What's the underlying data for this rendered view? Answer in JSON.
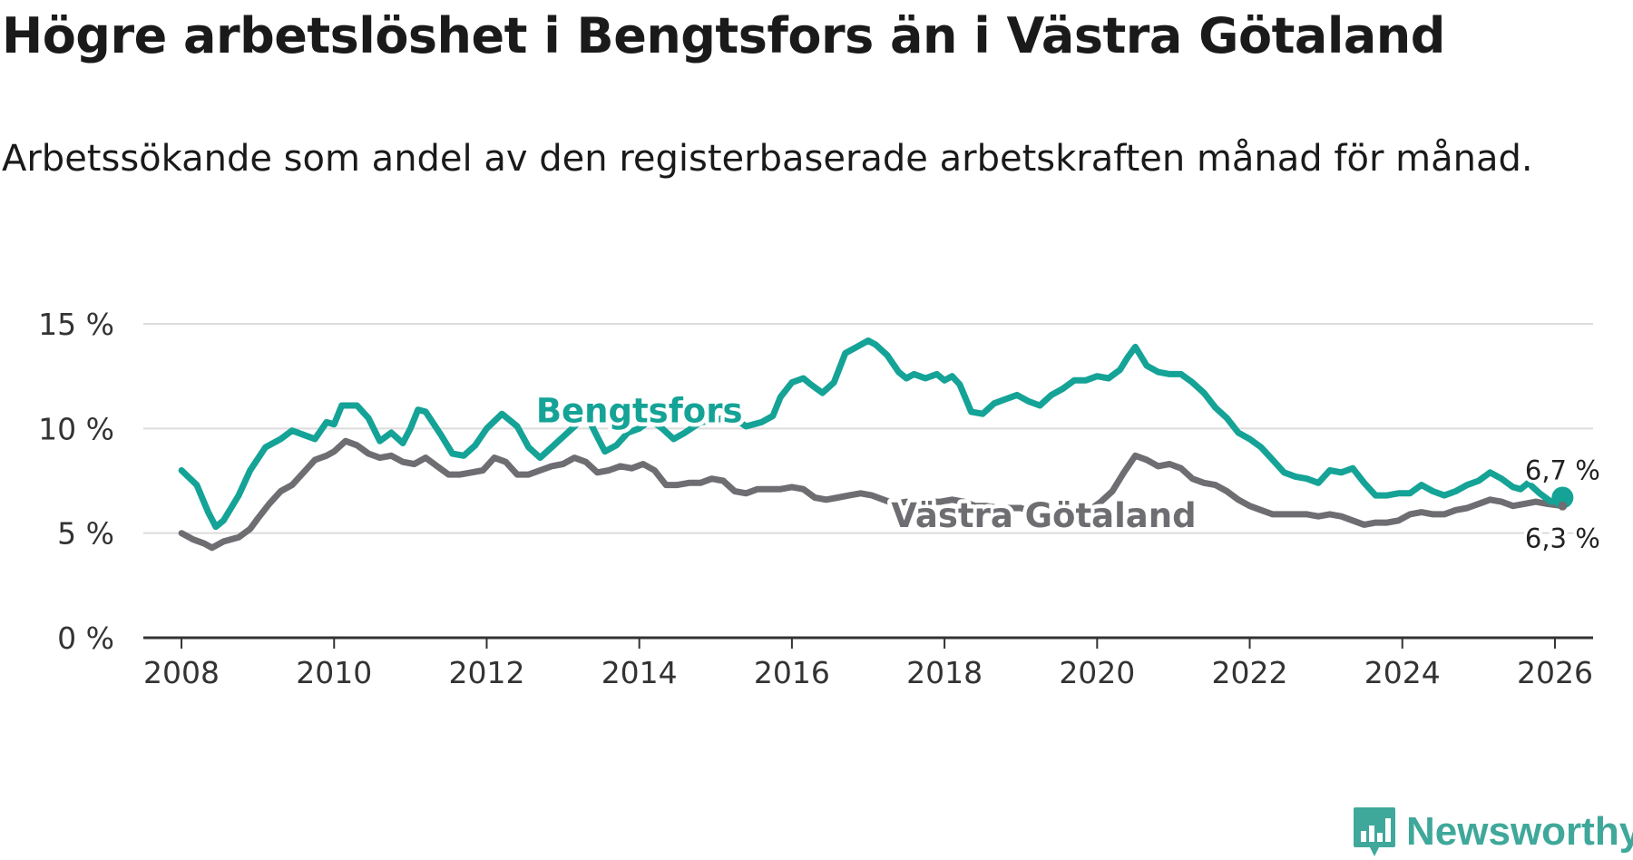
{
  "title": "Högre arbetslöshet i Bengtsfors än i Västra Götaland",
  "subtitle": "Arbetssökande som andel av den registerbaserade arbetskraften månad för månad.",
  "brand": {
    "name": "Newsworthy",
    "icon": "newsworthy-logo-icon",
    "color": "#3fa89a"
  },
  "chart_data": {
    "type": "line",
    "title": "Högre arbetslöshet i Bengtsfors än i Västra Götaland",
    "xlabel": "",
    "ylabel": "",
    "xlim": [
      2007.5,
      2026.5
    ],
    "ylim": [
      0,
      15
    ],
    "x_ticks": [
      2008,
      2010,
      2012,
      2014,
      2016,
      2018,
      2020,
      2022,
      2024,
      2026
    ],
    "x_tick_labels": [
      "2008",
      "2010",
      "2012",
      "2014",
      "2016",
      "2018",
      "2020",
      "2022",
      "2024",
      "2026"
    ],
    "y_ticks": [
      0,
      5,
      10,
      15
    ],
    "y_tick_labels": [
      "0 %",
      "5 %",
      "10 %",
      "15 %"
    ],
    "grid": true,
    "series": [
      {
        "name": "Bengtsfors",
        "color": "#14a396",
        "label_at": 2014.0,
        "end_label": "6,7 %",
        "points": [
          [
            2008.0,
            8.0
          ],
          [
            2008.2,
            7.3
          ],
          [
            2008.35,
            6.0
          ],
          [
            2008.45,
            5.3
          ],
          [
            2008.55,
            5.6
          ],
          [
            2008.75,
            6.8
          ],
          [
            2008.9,
            8.0
          ],
          [
            2009.1,
            9.1
          ],
          [
            2009.3,
            9.5
          ],
          [
            2009.45,
            9.9
          ],
          [
            2009.6,
            9.7
          ],
          [
            2009.75,
            9.5
          ],
          [
            2009.9,
            10.3
          ],
          [
            2010.0,
            10.2
          ],
          [
            2010.1,
            11.1
          ],
          [
            2010.3,
            11.1
          ],
          [
            2010.45,
            10.5
          ],
          [
            2010.6,
            9.4
          ],
          [
            2010.75,
            9.8
          ],
          [
            2010.9,
            9.3
          ],
          [
            2011.0,
            10.0
          ],
          [
            2011.1,
            10.9
          ],
          [
            2011.2,
            10.8
          ],
          [
            2011.4,
            9.7
          ],
          [
            2011.55,
            8.8
          ],
          [
            2011.7,
            8.7
          ],
          [
            2011.85,
            9.2
          ],
          [
            2012.0,
            10.0
          ],
          [
            2012.2,
            10.7
          ],
          [
            2012.4,
            10.1
          ],
          [
            2012.55,
            9.1
          ],
          [
            2012.7,
            8.6
          ],
          [
            2012.85,
            9.1
          ],
          [
            2013.0,
            9.6
          ],
          [
            2013.15,
            10.1
          ],
          [
            2013.3,
            10.7
          ],
          [
            2013.45,
            9.6
          ],
          [
            2013.55,
            8.9
          ],
          [
            2013.7,
            9.2
          ],
          [
            2013.85,
            9.8
          ],
          [
            2014.0,
            10.0
          ],
          [
            2014.15,
            10.4
          ],
          [
            2014.3,
            10.0
          ],
          [
            2014.45,
            9.5
          ],
          [
            2014.6,
            9.8
          ],
          [
            2014.8,
            10.3
          ],
          [
            2015.0,
            10.4
          ],
          [
            2015.2,
            10.6
          ],
          [
            2015.4,
            10.1
          ],
          [
            2015.6,
            10.3
          ],
          [
            2015.75,
            10.6
          ],
          [
            2015.85,
            11.5
          ],
          [
            2016.0,
            12.2
          ],
          [
            2016.15,
            12.4
          ],
          [
            2016.25,
            12.1
          ],
          [
            2016.4,
            11.7
          ],
          [
            2016.55,
            12.2
          ],
          [
            2016.7,
            13.6
          ],
          [
            2016.85,
            13.9
          ],
          [
            2017.0,
            14.2
          ],
          [
            2017.1,
            14.0
          ],
          [
            2017.25,
            13.5
          ],
          [
            2017.4,
            12.7
          ],
          [
            2017.5,
            12.4
          ],
          [
            2017.6,
            12.6
          ],
          [
            2017.75,
            12.4
          ],
          [
            2017.9,
            12.6
          ],
          [
            2018.0,
            12.3
          ],
          [
            2018.1,
            12.5
          ],
          [
            2018.2,
            12.1
          ],
          [
            2018.35,
            10.8
          ],
          [
            2018.5,
            10.7
          ],
          [
            2018.65,
            11.2
          ],
          [
            2018.8,
            11.4
          ],
          [
            2018.95,
            11.6
          ],
          [
            2019.1,
            11.3
          ],
          [
            2019.25,
            11.1
          ],
          [
            2019.4,
            11.6
          ],
          [
            2019.55,
            11.9
          ],
          [
            2019.7,
            12.3
          ],
          [
            2019.85,
            12.3
          ],
          [
            2020.0,
            12.5
          ],
          [
            2020.15,
            12.4
          ],
          [
            2020.3,
            12.8
          ],
          [
            2020.4,
            13.4
          ],
          [
            2020.5,
            13.9
          ],
          [
            2020.65,
            13.0
          ],
          [
            2020.8,
            12.7
          ],
          [
            2020.95,
            12.6
          ],
          [
            2021.1,
            12.6
          ],
          [
            2021.25,
            12.2
          ],
          [
            2021.4,
            11.7
          ],
          [
            2021.55,
            11.0
          ],
          [
            2021.7,
            10.5
          ],
          [
            2021.85,
            9.8
          ],
          [
            2022.0,
            9.5
          ],
          [
            2022.15,
            9.1
          ],
          [
            2022.3,
            8.5
          ],
          [
            2022.45,
            7.9
          ],
          [
            2022.6,
            7.7
          ],
          [
            2022.75,
            7.6
          ],
          [
            2022.9,
            7.4
          ],
          [
            2023.05,
            8.0
          ],
          [
            2023.2,
            7.9
          ],
          [
            2023.35,
            8.1
          ],
          [
            2023.5,
            7.4
          ],
          [
            2023.65,
            6.8
          ],
          [
            2023.8,
            6.8
          ],
          [
            2023.95,
            6.9
          ],
          [
            2024.1,
            6.9
          ],
          [
            2024.25,
            7.3
          ],
          [
            2024.4,
            7.0
          ],
          [
            2024.55,
            6.8
          ],
          [
            2024.7,
            7.0
          ],
          [
            2024.85,
            7.3
          ],
          [
            2025.0,
            7.5
          ],
          [
            2025.15,
            7.9
          ],
          [
            2025.3,
            7.6
          ],
          [
            2025.45,
            7.2
          ],
          [
            2025.55,
            7.1
          ],
          [
            2025.65,
            7.4
          ],
          [
            2025.8,
            6.9
          ],
          [
            2025.95,
            6.5
          ],
          [
            2026.1,
            6.7
          ]
        ]
      },
      {
        "name": "Västra Götaland",
        "color": "#6e6e72",
        "label_at": 2019.3,
        "end_label": "6,3 %",
        "points": [
          [
            2008.0,
            5.0
          ],
          [
            2008.15,
            4.7
          ],
          [
            2008.3,
            4.5
          ],
          [
            2008.4,
            4.3
          ],
          [
            2008.55,
            4.6
          ],
          [
            2008.75,
            4.8
          ],
          [
            2008.9,
            5.2
          ],
          [
            2009.0,
            5.7
          ],
          [
            2009.15,
            6.4
          ],
          [
            2009.3,
            7.0
          ],
          [
            2009.45,
            7.3
          ],
          [
            2009.6,
            7.9
          ],
          [
            2009.75,
            8.5
          ],
          [
            2009.9,
            8.7
          ],
          [
            2010.0,
            8.9
          ],
          [
            2010.15,
            9.4
          ],
          [
            2010.3,
            9.2
          ],
          [
            2010.45,
            8.8
          ],
          [
            2010.6,
            8.6
          ],
          [
            2010.75,
            8.7
          ],
          [
            2010.9,
            8.4
          ],
          [
            2011.05,
            8.3
          ],
          [
            2011.2,
            8.6
          ],
          [
            2011.35,
            8.2
          ],
          [
            2011.5,
            7.8
          ],
          [
            2011.65,
            7.8
          ],
          [
            2011.8,
            7.9
          ],
          [
            2011.95,
            8.0
          ],
          [
            2012.1,
            8.6
          ],
          [
            2012.25,
            8.4
          ],
          [
            2012.4,
            7.8
          ],
          [
            2012.55,
            7.8
          ],
          [
            2012.7,
            8.0
          ],
          [
            2012.85,
            8.2
          ],
          [
            2013.0,
            8.3
          ],
          [
            2013.15,
            8.6
          ],
          [
            2013.3,
            8.4
          ],
          [
            2013.45,
            7.9
          ],
          [
            2013.6,
            8.0
          ],
          [
            2013.75,
            8.2
          ],
          [
            2013.9,
            8.1
          ],
          [
            2014.05,
            8.3
          ],
          [
            2014.2,
            8.0
          ],
          [
            2014.35,
            7.3
          ],
          [
            2014.5,
            7.3
          ],
          [
            2014.65,
            7.4
          ],
          [
            2014.8,
            7.4
          ],
          [
            2014.95,
            7.6
          ],
          [
            2015.1,
            7.5
          ],
          [
            2015.25,
            7.0
          ],
          [
            2015.4,
            6.9
          ],
          [
            2015.55,
            7.1
          ],
          [
            2015.7,
            7.1
          ],
          [
            2015.85,
            7.1
          ],
          [
            2016.0,
            7.2
          ],
          [
            2016.15,
            7.1
          ],
          [
            2016.3,
            6.7
          ],
          [
            2016.45,
            6.6
          ],
          [
            2016.6,
            6.7
          ],
          [
            2016.75,
            6.8
          ],
          [
            2016.9,
            6.9
          ],
          [
            2017.05,
            6.8
          ],
          [
            2017.2,
            6.6
          ],
          [
            2017.35,
            6.4
          ],
          [
            2017.5,
            6.5
          ],
          [
            2017.65,
            6.4
          ],
          [
            2017.8,
            6.5
          ],
          [
            2017.95,
            6.5
          ],
          [
            2018.1,
            6.6
          ],
          [
            2018.25,
            6.5
          ],
          [
            2018.4,
            6.3
          ],
          [
            2018.55,
            6.3
          ],
          [
            2018.7,
            6.2
          ],
          [
            2018.85,
            6.2
          ],
          [
            2019.0,
            6.2
          ],
          [
            2019.15,
            6.0
          ],
          [
            2019.3,
            5.9
          ],
          [
            2019.45,
            5.9
          ],
          [
            2019.6,
            5.9
          ],
          [
            2019.75,
            6.0
          ],
          [
            2019.9,
            6.1
          ],
          [
            2020.05,
            6.5
          ],
          [
            2020.2,
            7.0
          ],
          [
            2020.35,
            7.9
          ],
          [
            2020.5,
            8.7
          ],
          [
            2020.65,
            8.5
          ],
          [
            2020.8,
            8.2
          ],
          [
            2020.95,
            8.3
          ],
          [
            2021.1,
            8.1
          ],
          [
            2021.25,
            7.6
          ],
          [
            2021.4,
            7.4
          ],
          [
            2021.55,
            7.3
          ],
          [
            2021.7,
            7.0
          ],
          [
            2021.85,
            6.6
          ],
          [
            2022.0,
            6.3
          ],
          [
            2022.15,
            6.1
          ],
          [
            2022.3,
            5.9
          ],
          [
            2022.45,
            5.9
          ],
          [
            2022.6,
            5.9
          ],
          [
            2022.75,
            5.9
          ],
          [
            2022.9,
            5.8
          ],
          [
            2023.05,
            5.9
          ],
          [
            2023.2,
            5.8
          ],
          [
            2023.35,
            5.6
          ],
          [
            2023.5,
            5.4
          ],
          [
            2023.65,
            5.5
          ],
          [
            2023.8,
            5.5
          ],
          [
            2023.95,
            5.6
          ],
          [
            2024.1,
            5.9
          ],
          [
            2024.25,
            6.0
          ],
          [
            2024.4,
            5.9
          ],
          [
            2024.55,
            5.9
          ],
          [
            2024.7,
            6.1
          ],
          [
            2024.85,
            6.2
          ],
          [
            2025.0,
            6.4
          ],
          [
            2025.15,
            6.6
          ],
          [
            2025.3,
            6.5
          ],
          [
            2025.45,
            6.3
          ],
          [
            2025.6,
            6.4
          ],
          [
            2025.75,
            6.5
          ],
          [
            2025.9,
            6.4
          ],
          [
            2026.1,
            6.3
          ]
        ]
      }
    ]
  }
}
